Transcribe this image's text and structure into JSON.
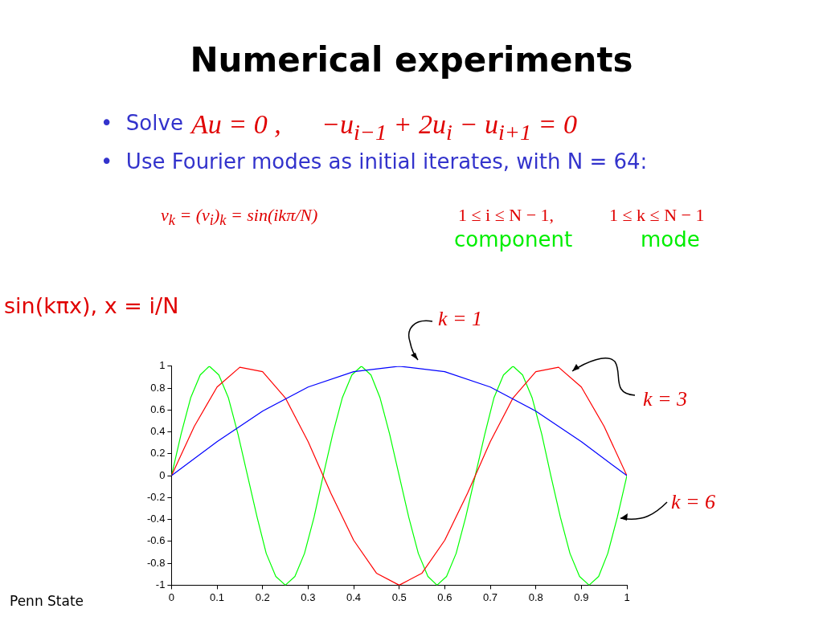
{
  "chart_data": {
    "type": "line",
    "title": "Numerical experiments",
    "annotations": [
      "•  Solve",
      "Au = 0 ,",
      "−u$_{i−1}$ + 2u$_{i}$ − u$_{i+1}$ = 0",
      "•  Use Fourier modes as initial iterates, with N = 64:",
      "v$_{k}$ = (v$_{i}$)$_{k}$ = sin(ikπ/N)",
      "1 ≤ i ≤ N − 1,",
      "1 ≤ k ≤ N − 1",
      "component",
      "mode",
      "sin(kπx), x = i/N",
      "Penn State"
    ],
    "xlim": [
      0,
      1
    ],
    "xticks": [
      0,
      0.1,
      0.2,
      0.3,
      0.4,
      0.5,
      0.6,
      0.7,
      0.8,
      0.9,
      1
    ],
    "ylim": [
      -1,
      1
    ],
    "yticks": [
      -1,
      -0.8,
      -0.6,
      -0.4,
      -0.2,
      0,
      0.2,
      0.4,
      0.6,
      0.8,
      1
    ],
    "grid": false,
    "legend": false,
    "marker": "none",
    "line_style": "solid",
    "series": [
      {
        "name": "k = 1",
        "color": "#0000ff",
        "x": [
          0,
          0.1,
          0.2,
          0.3,
          0.4,
          0.5,
          0.6,
          0.7,
          0.8,
          0.9,
          1
        ],
        "values": [
          0,
          0.31,
          0.59,
          0.81,
          0.95,
          1,
          0.95,
          0.81,
          0.59,
          0.31,
          0
        ]
      },
      {
        "name": "k = 3",
        "color": "#ff0000",
        "x": [
          0,
          0.05,
          0.1,
          0.15,
          0.2,
          0.25,
          0.3,
          0.35,
          0.4,
          0.45,
          0.5,
          0.55,
          0.6,
          0.65,
          0.7,
          0.75,
          0.8,
          0.85,
          0.9,
          0.95,
          1
        ],
        "values": [
          0,
          0.45,
          0.81,
          0.99,
          0.95,
          0.71,
          0.31,
          -0.16,
          -0.59,
          -0.89,
          -1,
          -0.89,
          -0.59,
          -0.16,
          0.31,
          0.71,
          0.95,
          0.99,
          0.81,
          0.45,
          0
        ]
      },
      {
        "name": "k = 6",
        "color": "#00ff00",
        "x": [
          0,
          0.021,
          0.042,
          0.063,
          0.083,
          0.104,
          0.125,
          0.146,
          0.167,
          0.188,
          0.208,
          0.229,
          0.25,
          0.271,
          0.292,
          0.313,
          0.333,
          0.354,
          0.375,
          0.396,
          0.417,
          0.438,
          0.458,
          0.479,
          0.5,
          0.521,
          0.542,
          0.563,
          0.583,
          0.604,
          0.625,
          0.646,
          0.667,
          0.688,
          0.708,
          0.729,
          0.75,
          0.771,
          0.792,
          0.813,
          0.833,
          0.854,
          0.875,
          0.896,
          0.917,
          0.938,
          0.958,
          0.979,
          1
        ],
        "values": [
          0,
          0.38,
          0.71,
          0.92,
          1,
          0.92,
          0.71,
          0.38,
          0,
          -0.38,
          -0.71,
          -0.92,
          -1,
          -0.92,
          -0.71,
          -0.38,
          0,
          0.38,
          0.71,
          0.92,
          1,
          0.92,
          0.71,
          0.38,
          0,
          -0.38,
          -0.71,
          -0.92,
          -1,
          -0.92,
          -0.71,
          -0.38,
          0,
          0.38,
          0.71,
          0.92,
          1,
          0.92,
          0.71,
          0.38,
          0,
          -0.38,
          -0.71,
          -0.92,
          -1,
          -0.92,
          -0.71,
          -0.38,
          0
        ]
      }
    ]
  }
}
